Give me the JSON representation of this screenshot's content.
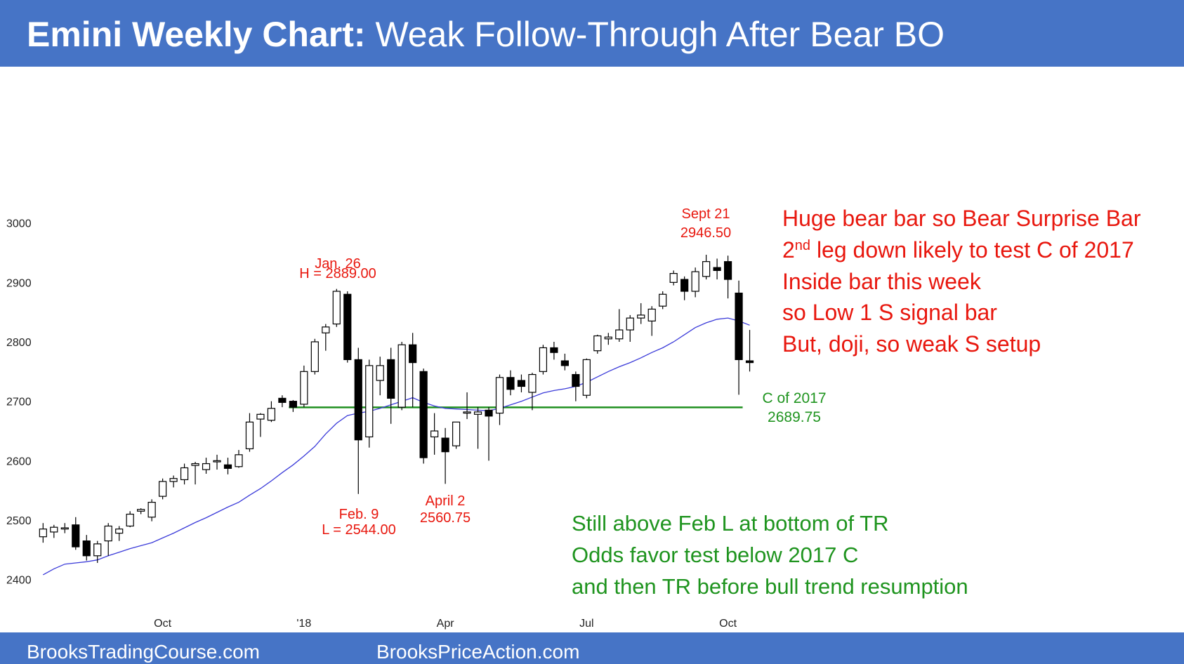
{
  "header": {
    "title_bold": "Emini Weekly Chart:",
    "title_rest": "Weak Follow-Through After Bear BO"
  },
  "footer": {
    "left": "BrooksTradingCourse.com",
    "right": "BrooksPriceAction.com"
  },
  "chart_data": {
    "type": "candlestick",
    "categories": [
      null,
      null,
      null,
      null,
      null,
      null,
      null,
      null,
      null,
      null,
      null,
      "Oct",
      null,
      null,
      null,
      null,
      null,
      null,
      null,
      null,
      null,
      null,
      null,
      null,
      "'18",
      null,
      null,
      null,
      null,
      null,
      null,
      null,
      null,
      null,
      null,
      null,
      null,
      "Apr",
      null,
      null,
      null,
      null,
      null,
      null,
      null,
      null,
      null,
      null,
      null,
      null,
      "Jul",
      null,
      null,
      null,
      null,
      null,
      null,
      null,
      null,
      null,
      null,
      null,
      null,
      "Oct",
      null,
      null
    ],
    "open": [
      2472,
      2480,
      2485,
      2492,
      2465,
      2440,
      2465,
      2478,
      2490,
      2515,
      2505,
      2540,
      2565,
      2568,
      2592,
      2585,
      2598,
      2593,
      2590,
      2620,
      2670,
      2668,
      2705,
      2700,
      2695,
      2750,
      2815,
      2830,
      2880,
      2770,
      2640,
      2735,
      2770,
      2690,
      2795,
      2750,
      2640,
      2638,
      2625,
      2680,
      2678,
      2685,
      2680,
      2740,
      2735,
      2715,
      2750,
      2790,
      2768,
      2745,
      2710,
      2785,
      2805,
      2805,
      2820,
      2840,
      2835,
      2860,
      2900,
      2905,
      2885,
      2910,
      2925,
      2935,
      2882,
      2768
    ],
    "high": [
      2495,
      2492,
      2495,
      2505,
      2475,
      2465,
      2495,
      2490,
      2515,
      2520,
      2535,
      2570,
      2575,
      2595,
      2598,
      2605,
      2610,
      2605,
      2618,
      2680,
      2680,
      2700,
      2710,
      2702,
      2760,
      2805,
      2830,
      2889,
      2885,
      2790,
      2770,
      2775,
      2790,
      2800,
      2815,
      2755,
      2680,
      2655,
      2665,
      2715,
      2690,
      2690,
      2745,
      2752,
      2745,
      2748,
      2795,
      2800,
      2780,
      2750,
      2772,
      2812,
      2815,
      2855,
      2845,
      2865,
      2860,
      2885,
      2920,
      2910,
      2925,
      2946.5,
      2940,
      2945,
      2903,
      2820
    ],
    "low": [
      2462,
      2470,
      2478,
      2450,
      2432,
      2428,
      2440,
      2465,
      2488,
      2510,
      2498,
      2535,
      2555,
      2560,
      2560,
      2578,
      2585,
      2577,
      2588,
      2615,
      2640,
      2665,
      2690,
      2682,
      2690,
      2745,
      2785,
      2825,
      2765,
      2544,
      2622,
      2710,
      2662,
      2685,
      2690,
      2595,
      2610,
      2561,
      2620,
      2670,
      2620,
      2600,
      2660,
      2710,
      2715,
      2685,
      2745,
      2770,
      2752,
      2700,
      2705,
      2780,
      2795,
      2800,
      2800,
      2830,
      2810,
      2855,
      2895,
      2870,
      2875,
      2905,
      2905,
      2873,
      2711,
      2750
    ],
    "close": [
      2485,
      2488,
      2487,
      2455,
      2440,
      2460,
      2490,
      2485,
      2510,
      2518,
      2530,
      2565,
      2570,
      2588,
      2595,
      2595,
      2600,
      2587,
      2610,
      2665,
      2678,
      2688,
      2698,
      2690,
      2750,
      2800,
      2825,
      2885,
      2770,
      2635,
      2760,
      2760,
      2705,
      2795,
      2765,
      2605,
      2650,
      2615,
      2665,
      2682,
      2682,
      2675,
      2740,
      2720,
      2725,
      2745,
      2790,
      2782,
      2760,
      2725,
      2770,
      2810,
      2808,
      2820,
      2840,
      2845,
      2855,
      2880,
      2915,
      2885,
      2918,
      2935,
      2920,
      2905,
      2770,
      2765
    ],
    "moving_average": {
      "color": "#3b3bd9",
      "values": [
        2408,
        2418,
        2426,
        2428,
        2430,
        2433,
        2440,
        2446,
        2452,
        2457,
        2462,
        2470,
        2478,
        2487,
        2496,
        2504,
        2513,
        2522,
        2530,
        2542,
        2553,
        2566,
        2580,
        2593,
        2608,
        2624,
        2645,
        2663,
        2676,
        2680,
        2683,
        2688,
        2694,
        2700,
        2706,
        2698,
        2692,
        2688,
        2687,
        2686,
        2685,
        2684,
        2688,
        2694,
        2700,
        2707,
        2714,
        2718,
        2721,
        2725,
        2732,
        2741,
        2750,
        2758,
        2765,
        2773,
        2782,
        2790,
        2800,
        2812,
        2824,
        2832,
        2838,
        2840,
        2835,
        2828
      ]
    },
    "level_line": {
      "value": 2689.75,
      "color": "#1f8f1f"
    },
    "ylim": [
      2350,
      3260
    ],
    "yticks": [
      2400,
      2500,
      2600,
      2700,
      2800,
      2900,
      3000
    ],
    "grid": false,
    "annotations": {
      "sept": [
        "Sept 21",
        "2946.50"
      ],
      "jan": [
        "Jan. 26",
        "H = 2889.00"
      ],
      "feb": [
        "Feb. 9",
        "L = 2544.00"
      ],
      "april": [
        "April 2",
        "2560.75"
      ],
      "c2017": [
        "C of 2017",
        "2689.75"
      ],
      "red_box": [
        "Huge bear bar so Bear Surprise Bar",
        [
          "2",
          "nd",
          " leg down likely to test C of 2017"
        ],
        "Inside bar this week",
        "so Low 1 S signal bar",
        "But, doji, so weak S setup"
      ],
      "green_box": [
        "Still above Feb L at bottom of TR",
        "Odds favor test below 2017 C",
        "and then TR before bull trend resumption"
      ]
    }
  }
}
